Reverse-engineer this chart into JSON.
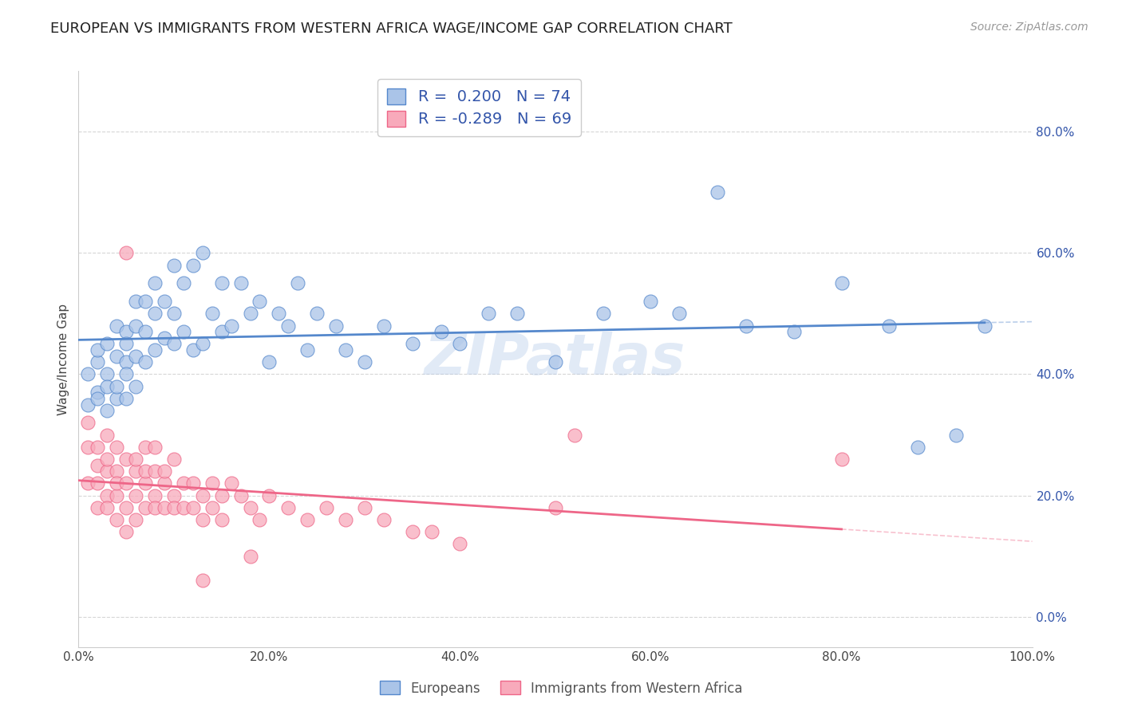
{
  "title": "EUROPEAN VS IMMIGRANTS FROM WESTERN AFRICA WAGE/INCOME GAP CORRELATION CHART",
  "source": "Source: ZipAtlas.com",
  "ylabel": "Wage/Income Gap",
  "background_color": "#ffffff",
  "plot_bg_color": "#ffffff",
  "grid_color": "#cccccc",
  "blue_color": "#5588cc",
  "blue_fill": "#aac4e8",
  "pink_color": "#ee6688",
  "pink_fill": "#f8aabb",
  "R_blue": 0.2,
  "N_blue": 74,
  "R_pink": -0.289,
  "N_pink": 69,
  "xlim": [
    0.0,
    1.0
  ],
  "ylim": [
    -0.05,
    0.9
  ],
  "xticks": [
    0.0,
    0.2,
    0.4,
    0.6,
    0.8,
    1.0
  ],
  "xtick_labels": [
    "0.0%",
    "20.0%",
    "40.0%",
    "60.0%",
    "80.0%",
    "100.0%"
  ],
  "yticks": [
    0.0,
    0.2,
    0.4,
    0.6,
    0.8
  ],
  "ytick_labels": [
    "0.0%",
    "20.0%",
    "40.0%",
    "60.0%",
    "80.0%"
  ],
  "blue_scatter_x": [
    0.01,
    0.01,
    0.02,
    0.02,
    0.02,
    0.02,
    0.03,
    0.03,
    0.03,
    0.03,
    0.04,
    0.04,
    0.04,
    0.04,
    0.05,
    0.05,
    0.05,
    0.05,
    0.05,
    0.06,
    0.06,
    0.06,
    0.06,
    0.07,
    0.07,
    0.07,
    0.08,
    0.08,
    0.08,
    0.09,
    0.09,
    0.1,
    0.1,
    0.1,
    0.11,
    0.11,
    0.12,
    0.12,
    0.13,
    0.13,
    0.14,
    0.15,
    0.15,
    0.16,
    0.17,
    0.18,
    0.19,
    0.2,
    0.21,
    0.22,
    0.23,
    0.24,
    0.25,
    0.27,
    0.28,
    0.3,
    0.32,
    0.35,
    0.38,
    0.4,
    0.43,
    0.46,
    0.5,
    0.55,
    0.6,
    0.63,
    0.67,
    0.7,
    0.75,
    0.8,
    0.85,
    0.88,
    0.92,
    0.95
  ],
  "blue_scatter_y": [
    0.35,
    0.4,
    0.37,
    0.42,
    0.36,
    0.44,
    0.34,
    0.4,
    0.45,
    0.38,
    0.36,
    0.43,
    0.48,
    0.38,
    0.36,
    0.42,
    0.47,
    0.4,
    0.45,
    0.38,
    0.43,
    0.48,
    0.52,
    0.42,
    0.47,
    0.52,
    0.44,
    0.5,
    0.55,
    0.46,
    0.52,
    0.45,
    0.5,
    0.58,
    0.47,
    0.55,
    0.44,
    0.58,
    0.45,
    0.6,
    0.5,
    0.47,
    0.55,
    0.48,
    0.55,
    0.5,
    0.52,
    0.42,
    0.5,
    0.48,
    0.55,
    0.44,
    0.5,
    0.48,
    0.44,
    0.42,
    0.48,
    0.45,
    0.47,
    0.45,
    0.5,
    0.5,
    0.42,
    0.5,
    0.52,
    0.5,
    0.7,
    0.48,
    0.47,
    0.55,
    0.48,
    0.28,
    0.3,
    0.48
  ],
  "pink_scatter_x": [
    0.01,
    0.01,
    0.01,
    0.02,
    0.02,
    0.02,
    0.02,
    0.03,
    0.03,
    0.03,
    0.03,
    0.03,
    0.04,
    0.04,
    0.04,
    0.04,
    0.04,
    0.05,
    0.05,
    0.05,
    0.05,
    0.06,
    0.06,
    0.06,
    0.06,
    0.07,
    0.07,
    0.07,
    0.07,
    0.08,
    0.08,
    0.08,
    0.08,
    0.09,
    0.09,
    0.09,
    0.1,
    0.1,
    0.1,
    0.11,
    0.11,
    0.12,
    0.12,
    0.13,
    0.13,
    0.14,
    0.14,
    0.15,
    0.15,
    0.16,
    0.17,
    0.18,
    0.19,
    0.2,
    0.22,
    0.24,
    0.26,
    0.28,
    0.3,
    0.32,
    0.35,
    0.37,
    0.4,
    0.13,
    0.18,
    0.5,
    0.52,
    0.8,
    0.05
  ],
  "pink_scatter_y": [
    0.28,
    0.22,
    0.32,
    0.25,
    0.28,
    0.22,
    0.18,
    0.3,
    0.24,
    0.2,
    0.26,
    0.18,
    0.28,
    0.24,
    0.2,
    0.16,
    0.22,
    0.26,
    0.22,
    0.18,
    0.14,
    0.24,
    0.2,
    0.16,
    0.26,
    0.22,
    0.18,
    0.24,
    0.28,
    0.2,
    0.24,
    0.18,
    0.28,
    0.22,
    0.18,
    0.24,
    0.2,
    0.26,
    0.18,
    0.22,
    0.18,
    0.22,
    0.18,
    0.2,
    0.16,
    0.22,
    0.18,
    0.2,
    0.16,
    0.22,
    0.2,
    0.18,
    0.16,
    0.2,
    0.18,
    0.16,
    0.18,
    0.16,
    0.18,
    0.16,
    0.14,
    0.14,
    0.12,
    0.06,
    0.1,
    0.18,
    0.3,
    0.26,
    0.6
  ],
  "watermark_text": "ZIPatlas",
  "watermark_color": "#aac4e8",
  "watermark_alpha": 0.35,
  "title_fontsize": 13,
  "axis_label_fontsize": 11,
  "tick_fontsize": 11,
  "source_fontsize": 10,
  "legend_color": "#3355aa"
}
